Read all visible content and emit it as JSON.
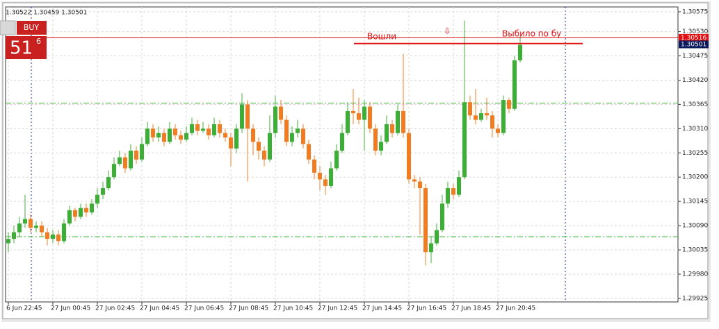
{
  "chart_data": {
    "type": "candlestick",
    "info": "1.30522 1.30459 1.30501",
    "buy": {
      "label": "BUY",
      "big": "51",
      "small": "6"
    },
    "annotations": [
      "Вошли",
      "⇩",
      "Выбило  по бу"
    ],
    "annotation_line": 1.30503,
    "levels": [
      {
        "value": 1.30516,
        "color": "#e01010"
      },
      {
        "value": 1.30501,
        "color": "#0a1a5c"
      }
    ],
    "hlines": [
      1.30368,
      1.30065
    ],
    "up_color": "#3cb034",
    "down_color": "#f47c20",
    "ylim": [
      1.29917,
      1.30586
    ],
    "yticks": [
      {
        "value": 1.30575,
        "label": "1.30575"
      },
      {
        "value": 1.3053,
        "label": "1.30530"
      },
      {
        "value": 1.30475,
        "label": "1.30475"
      },
      {
        "value": 1.3042,
        "label": "1.30420"
      },
      {
        "value": 1.30365,
        "label": "1.30365"
      },
      {
        "value": 1.3031,
        "label": "1.30310"
      },
      {
        "value": 1.30255,
        "label": "1.30255"
      },
      {
        "value": 1.302,
        "label": "1.30200"
      },
      {
        "value": 1.30145,
        "label": "1.30145"
      },
      {
        "value": 1.3009,
        "label": "1.30090"
      },
      {
        "value": 1.30035,
        "label": "1.30035"
      },
      {
        "value": 1.2998,
        "label": "1.29980"
      },
      {
        "value": 1.29925,
        "label": "1.29925"
      }
    ],
    "grid": true,
    "categories": [
      "6 Jun 22:45",
      null,
      null,
      null,
      null,
      null,
      null,
      null,
      "27 Jun 00:45",
      null,
      null,
      null,
      null,
      null,
      null,
      null,
      "27 Jun 02:45",
      null,
      null,
      null,
      null,
      null,
      null,
      null,
      "27 Jun 04:45",
      null,
      null,
      null,
      null,
      null,
      null,
      null,
      "27 Jun 06:45",
      null,
      null,
      null,
      null,
      null,
      null,
      null,
      "27 Jun 08:45",
      null,
      null,
      null,
      null,
      null,
      null,
      null,
      "27 Jun 10:45",
      null,
      null,
      null,
      null,
      null,
      null,
      null,
      "27 Jun 12:45",
      null,
      null,
      null,
      null,
      null,
      null,
      null,
      "27 Jun 14:45",
      null,
      null,
      null,
      null,
      null,
      null,
      null,
      "27 Jun 16:45",
      null,
      null,
      null,
      null,
      null,
      null,
      null,
      "27 Jun 18:45",
      null,
      null,
      null,
      null,
      null,
      null,
      null,
      "27 Jun 20:45",
      null,
      null,
      null,
      null
    ],
    "open": [
      1.3005,
      1.3006,
      1.30075,
      1.30095,
      1.30105,
      1.30085,
      1.3009,
      1.30075,
      1.3006,
      1.3007,
      1.30055,
      1.30095,
      1.30125,
      1.3011,
      1.3013,
      1.3012,
      1.3014,
      1.3016,
      1.30175,
      1.302,
      1.3023,
      1.30245,
      1.3022,
      1.3026,
      1.3024,
      1.30275,
      1.3031,
      1.3029,
      1.303,
      1.3028,
      1.3031,
      1.30295,
      1.30285,
      1.303,
      1.3032,
      1.30305,
      1.3031,
      1.30295,
      1.3032,
      1.303,
      1.3029,
      1.30265,
      1.3031,
      1.30365,
      1.3031,
      1.3028,
      1.3026,
      1.3024,
      1.303,
      1.3036,
      1.3033,
      1.3028,
      1.303,
      1.3031,
      1.30275,
      1.3024,
      1.3021,
      1.30195,
      1.3018,
      1.3022,
      1.3026,
      1.303,
      1.3035,
      1.30345,
      1.3033,
      1.3036,
      1.3031,
      1.3026,
      1.3028,
      1.3032,
      1.303,
      1.3035,
      1.303,
      1.30195,
      1.3019,
      1.30175,
      1.3003,
      1.3005,
      1.3008,
      1.3014,
      1.30175,
      1.3016,
      1.302,
      1.3037,
      1.3034,
      1.3033,
      1.30345,
      1.3034,
      1.3031,
      1.303,
      1.30375,
      1.30355,
      1.30465
    ],
    "high": [
      1.30075,
      1.3009,
      1.3011,
      1.3016,
      1.30115,
      1.301,
      1.301,
      1.30085,
      1.3008,
      1.3008,
      1.30105,
      1.30135,
      1.3013,
      1.3014,
      1.3014,
      1.3015,
      1.30175,
      1.3019,
      1.30215,
      1.30245,
      1.3026,
      1.30255,
      1.30275,
      1.3027,
      1.3029,
      1.30325,
      1.3032,
      1.30315,
      1.3031,
      1.30325,
      1.3032,
      1.30305,
      1.30315,
      1.30335,
      1.3033,
      1.30325,
      1.3032,
      1.30335,
      1.3033,
      1.3031,
      1.303,
      1.3032,
      1.3039,
      1.30375,
      1.3032,
      1.3029,
      1.3027,
      1.3034,
      1.30385,
      1.30375,
      1.3034,
      1.30315,
      1.3033,
      1.3032,
      1.30285,
      1.3025,
      1.30225,
      1.30205,
      1.30235,
      1.30275,
      1.3032,
      1.3037,
      1.304,
      1.3038,
      1.30375,
      1.3037,
      1.3032,
      1.30295,
      1.3034,
      1.3033,
      1.30365,
      1.3048,
      1.3031,
      1.30205,
      1.302,
      1.30185,
      1.30065,
      1.30095,
      1.3016,
      1.3019,
      1.30185,
      1.30215,
      1.30555,
      1.30385,
      1.304,
      1.30355,
      1.3038,
      1.3035,
      1.3032,
      1.30385,
      1.3038,
      1.30475,
      1.3052
    ],
    "low": [
      1.3003,
      1.3005,
      1.30065,
      1.30085,
      1.30075,
      1.30075,
      1.30065,
      1.30045,
      1.3005,
      1.30045,
      1.3005,
      1.3009,
      1.301,
      1.30105,
      1.3011,
      1.30115,
      1.3013,
      1.3015,
      1.3017,
      1.30195,
      1.30225,
      1.3021,
      1.30215,
      1.3023,
      1.30235,
      1.3027,
      1.3028,
      1.3028,
      1.3027,
      1.30275,
      1.30285,
      1.30275,
      1.3028,
      1.30295,
      1.30295,
      1.303,
      1.30285,
      1.3029,
      1.3029,
      1.3028,
      1.30225,
      1.30255,
      1.303,
      1.3019,
      1.3025,
      1.3024,
      1.30225,
      1.30235,
      1.3029,
      1.3032,
      1.3027,
      1.3027,
      1.3029,
      1.30265,
      1.3023,
      1.30195,
      1.3017,
      1.3016,
      1.30175,
      1.30215,
      1.30255,
      1.30295,
      1.3032,
      1.3032,
      1.3026,
      1.303,
      1.3025,
      1.3025,
      1.30275,
      1.3029,
      1.30295,
      1.3029,
      1.30185,
      1.30175,
      1.3007,
      1.3,
      1.30005,
      1.30045,
      1.30075,
      1.3013,
      1.3015,
      1.30155,
      1.30195,
      1.3033,
      1.3032,
      1.30325,
      1.3033,
      1.3029,
      1.3029,
      1.30295,
      1.30345,
      1.3035,
      1.3046
    ],
    "close": [
      1.3006,
      1.30075,
      1.30095,
      1.30105,
      1.30085,
      1.3009,
      1.30075,
      1.3006,
      1.3007,
      1.30055,
      1.30095,
      1.30125,
      1.3011,
      1.3013,
      1.3012,
      1.3014,
      1.3016,
      1.30175,
      1.302,
      1.3023,
      1.30245,
      1.3022,
      1.3026,
      1.3024,
      1.30275,
      1.3031,
      1.3029,
      1.303,
      1.3028,
      1.3031,
      1.30295,
      1.30285,
      1.303,
      1.3032,
      1.30305,
      1.3031,
      1.30295,
      1.3032,
      1.303,
      1.3029,
      1.30265,
      1.3031,
      1.30365,
      1.3031,
      1.3028,
      1.3026,
      1.3024,
      1.303,
      1.3036,
      1.3033,
      1.3028,
      1.303,
      1.3031,
      1.30275,
      1.3024,
      1.3021,
      1.30195,
      1.3018,
      1.3022,
      1.3026,
      1.303,
      1.3035,
      1.30345,
      1.3033,
      1.3036,
      1.3031,
      1.3026,
      1.3028,
      1.3032,
      1.303,
      1.3035,
      1.303,
      1.30195,
      1.3019,
      1.30175,
      1.3003,
      1.3005,
      1.3008,
      1.3014,
      1.30175,
      1.3016,
      1.302,
      1.3037,
      1.3034,
      1.3033,
      1.30345,
      1.3034,
      1.3031,
      1.303,
      1.30375,
      1.30355,
      1.30465,
      1.305
    ]
  }
}
